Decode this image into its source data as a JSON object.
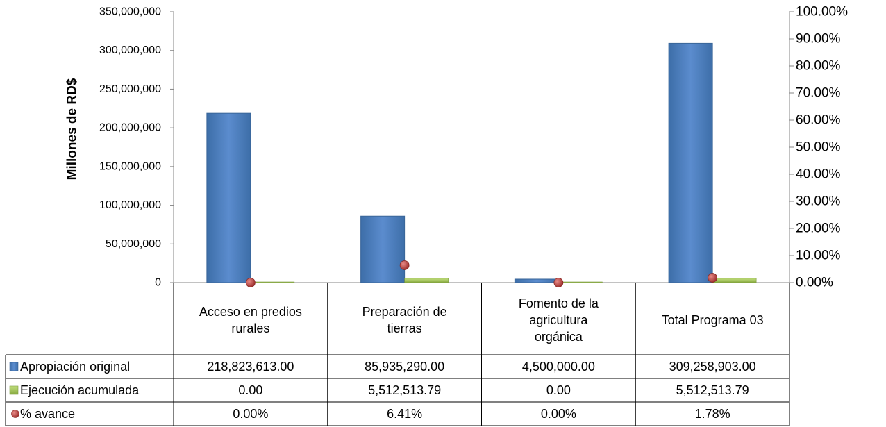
{
  "chart_data": {
    "type": "bar",
    "categories": [
      [
        "Acceso en predios",
        "rurales"
      ],
      [
        "Preparación de",
        "tierras"
      ],
      [
        "Fomento de la",
        "agricultura",
        "orgánica"
      ],
      [
        "Total Programa 03"
      ]
    ],
    "ylabel": "Millones de RD$",
    "ylim": [
      0,
      350000000
    ],
    "y_ticks": [
      "0",
      "50,000,000",
      "100,000,000",
      "150,000,000",
      "200,000,000",
      "250,000,000",
      "300,000,000",
      "350,000,000"
    ],
    "y2lim": [
      0,
      100
    ],
    "y2_ticks": [
      "0.00%",
      "10.00%",
      "20.00%",
      "30.00%",
      "40.00%",
      "50.00%",
      "60.00%",
      "70.00%",
      "80.00%",
      "90.00%",
      "100.00%"
    ],
    "grid": false,
    "legend": "data-table",
    "series": [
      {
        "name": "Apropiación original",
        "axis": "left",
        "color": "#4f81bd",
        "values": [
          218823613,
          85935290,
          4500000,
          309258903
        ],
        "labels": [
          "218,823,613.00",
          "85,935,290.00",
          "4,500,000.00",
          "309,258,903.00"
        ]
      },
      {
        "name": "Ejecución acumulada",
        "axis": "left",
        "color": "#9bbb59",
        "values": [
          0,
          5512513.79,
          0,
          5512513.79
        ],
        "labels": [
          "0.00",
          "5,512,513.79",
          "0.00",
          "5,512,513.79"
        ]
      },
      {
        "name": "% avance",
        "axis": "right",
        "marker": "circle",
        "color": "#c0504d",
        "values": [
          0,
          6.41,
          0,
          1.78
        ],
        "labels": [
          "0.00%",
          "6.41%",
          "0.00%",
          "1.78%"
        ]
      }
    ]
  }
}
